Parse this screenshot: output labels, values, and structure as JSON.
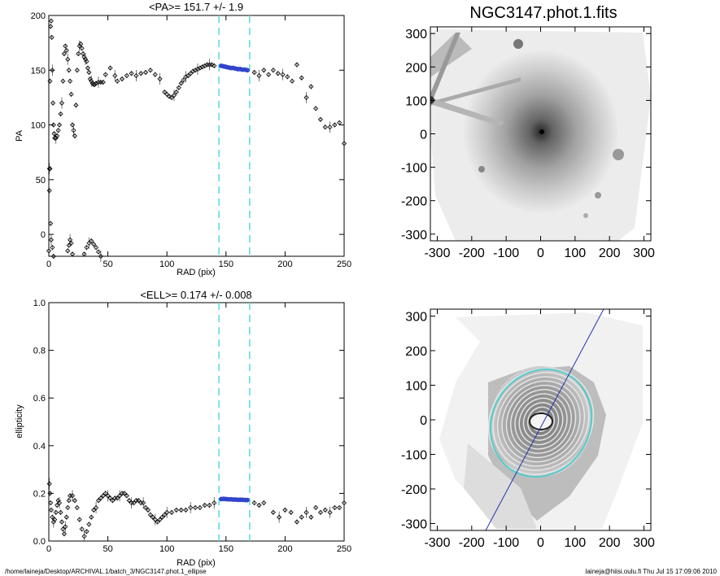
{
  "footer": {
    "path": "/home/laineja/Desktop/ARCHIVAL.1/batch_3/NGC3147.phot.1_ellipse",
    "user_stamp": "laineja@hiisi.oulu.fi  Thu Jul 15 17:09:06 2010"
  },
  "colors": {
    "axis": "#000000",
    "dashed_lines": "#55dddd",
    "fit_points": "#3344cc",
    "data_points": "#000000",
    "major_axis_line": "#2233aa",
    "ellipse_contours": "#e8e8e8",
    "outer_ellipse": "#55cccc"
  },
  "chart_data": [
    {
      "id": "pa-profile",
      "type": "scatter",
      "title": "<PA>= 151.7 +/-   1.9",
      "xlabel": "RAD (pix)",
      "ylabel": "PA",
      "xlim": [
        0,
        250
      ],
      "ylim": [
        -20,
        200
      ],
      "x_ticks": [
        "0",
        "50",
        "100",
        "150",
        "200",
        "250"
      ],
      "y_ticks": [
        "0",
        "50",
        "100",
        "150",
        "200"
      ],
      "vlines": [
        144,
        170
      ],
      "fit_range": [
        144,
        170
      ],
      "series": [
        {
          "x": [
            0.5,
            1,
            1.5,
            2,
            2.5,
            3,
            3.5,
            4,
            4.5,
            5,
            6,
            7,
            8,
            9,
            10,
            11,
            12,
            13,
            14,
            15,
            16,
            17,
            18,
            19,
            20,
            21,
            22,
            23,
            24,
            25,
            26,
            27,
            28,
            29,
            30,
            31,
            32,
            33,
            34,
            35,
            36,
            37,
            38,
            39,
            40,
            42,
            44,
            46,
            48,
            52,
            56,
            58,
            62,
            66,
            70,
            74,
            78,
            82,
            86,
            90,
            94,
            98,
            100,
            102,
            104,
            106,
            108,
            110,
            112,
            114,
            116,
            118,
            120,
            122,
            124,
            126,
            128,
            130,
            132,
            134,
            136,
            138,
            140,
            150,
            174,
            178,
            182,
            186,
            190,
            194,
            198,
            202,
            206,
            210,
            214,
            218,
            222,
            226,
            230,
            234,
            238,
            242,
            246,
            250
          ],
          "y": [
            60,
            140,
            190,
            195,
            180,
            150,
            120,
            100,
            92,
            88,
            88,
            90,
            95,
            100,
            110,
            120,
            140,
            165,
            172,
            168,
            160,
            150,
            140,
            128,
            100,
            95,
            90,
            118,
            150,
            165,
            172,
            174,
            170,
            165,
            162,
            160,
            158,
            152,
            148,
            142,
            140,
            138,
            137,
            137,
            138,
            139,
            139,
            139,
            146,
            152,
            145,
            140,
            142,
            145,
            147,
            145,
            147,
            148,
            150,
            146,
            142,
            130,
            128,
            126,
            125,
            127,
            130,
            134,
            138,
            141,
            144,
            145,
            147,
            149,
            150,
            151,
            152,
            153,
            154,
            155,
            155,
            155,
            154,
            153,
            148,
            145,
            150,
            146,
            150,
            147,
            146,
            144,
            140,
            155,
            143,
            125,
            135,
            115,
            105,
            98,
            98,
            100,
            102,
            83
          ]
        },
        {
          "x": [
            -1,
            0,
            0.5,
            1,
            1.5,
            2,
            3,
            4,
            16,
            17,
            18,
            19,
            20,
            30,
            32,
            34,
            36,
            38,
            40,
            42,
            44
          ],
          "y": [
            -20,
            -15,
            40,
            60,
            10,
            -5,
            -12,
            -20,
            -15,
            -10,
            -5,
            -8,
            -18,
            -18,
            -12,
            -8,
            -6,
            -9,
            -12,
            -16,
            -20
          ]
        },
        {
          "x": [
            146,
            148,
            150,
            152,
            154,
            156,
            158,
            160,
            162,
            164,
            166,
            168
          ],
          "y": [
            154,
            153.5,
            153,
            152.5,
            152,
            152,
            151.5,
            151,
            151,
            150.5,
            150.5,
            150
          ]
        }
      ]
    },
    {
      "id": "ellipticity-profile",
      "type": "scatter",
      "title": "<ELL>= 0.174 +/-  0.008",
      "xlabel": "RAD (pix)",
      "ylabel": "ellipticity",
      "xlim": [
        0,
        250
      ],
      "ylim": [
        0.0,
        1.0
      ],
      "x_ticks": [
        "0",
        "50",
        "100",
        "150",
        "200",
        "250"
      ],
      "y_ticks": [
        "0.0",
        "0.2",
        "0.4",
        "0.6",
        "0.8",
        "1.0"
      ],
      "vlines": [
        144,
        170
      ],
      "fit_range": [
        144,
        170
      ],
      "series": [
        {
          "x": [
            0.5,
            1,
            1.5,
            2,
            3,
            4,
            5,
            6,
            7,
            8,
            9,
            10,
            11,
            12,
            13,
            14,
            15,
            16,
            17,
            18,
            20,
            22,
            24,
            26,
            28,
            30,
            32,
            34,
            36,
            38,
            40,
            42,
            44,
            46,
            48,
            50,
            52,
            54,
            56,
            58,
            60,
            62,
            64,
            66,
            68,
            70,
            72,
            74,
            76,
            78,
            80,
            82,
            84,
            86,
            88,
            90,
            92,
            94,
            96,
            98,
            100,
            104,
            108,
            112,
            116,
            120,
            124,
            128,
            132,
            136,
            140,
            174,
            178,
            182,
            190,
            195,
            200,
            205,
            210,
            214,
            218,
            222,
            226,
            230,
            234,
            238,
            242,
            246,
            250
          ],
          "y": [
            0.24,
            0.2,
            0.16,
            0.13,
            0.1,
            0.08,
            0.09,
            0.12,
            0.15,
            0.17,
            0.16,
            0.12,
            0.08,
            0.05,
            0.03,
            0.06,
            0.1,
            0.14,
            0.17,
            0.19,
            0.19,
            0.17,
            0.14,
            0.09,
            0.05,
            0.02,
            0.04,
            0.07,
            0.1,
            0.13,
            0.14,
            0.17,
            0.18,
            0.19,
            0.2,
            0.19,
            0.18,
            0.17,
            0.18,
            0.18,
            0.19,
            0.2,
            0.2,
            0.19,
            0.17,
            0.16,
            0.16,
            0.17,
            0.17,
            0.16,
            0.16,
            0.14,
            0.13,
            0.11,
            0.1,
            0.09,
            0.08,
            0.09,
            0.1,
            0.11,
            0.12,
            0.12,
            0.13,
            0.13,
            0.13,
            0.14,
            0.14,
            0.14,
            0.15,
            0.15,
            0.16,
            0.16,
            0.15,
            0.16,
            0.12,
            0.1,
            0.13,
            0.12,
            0.08,
            0.1,
            0.12,
            0.1,
            0.14,
            0.12,
            0.13,
            0.12,
            0.14,
            0.14,
            0.16
          ]
        },
        {
          "x": [
            146,
            148,
            150,
            152,
            154,
            156,
            158,
            160,
            162,
            164,
            166,
            168
          ],
          "y": [
            0.176,
            0.177,
            0.176,
            0.175,
            0.175,
            0.174,
            0.174,
            0.173,
            0.173,
            0.173,
            0.172,
            0.172
          ]
        }
      ]
    },
    {
      "id": "galaxy-image",
      "type": "heatmap",
      "title": "NGC3147.phot.1.fits",
      "xlim": [
        -320,
        320
      ],
      "ylim": [
        -320,
        320
      ],
      "x_ticks": [
        "-300",
        "-200",
        "-100",
        "0",
        "100",
        "200",
        "300"
      ],
      "y_ticks": [
        "-300",
        "-200",
        "-100",
        "0",
        "100",
        "200",
        "300"
      ]
    },
    {
      "id": "ellipse-fit-image",
      "type": "heatmap",
      "title": "",
      "xlim": [
        -320,
        320
      ],
      "ylim": [
        -320,
        320
      ],
      "x_ticks": [
        "-300",
        "-200",
        "-100",
        "0",
        "100",
        "200",
        "300"
      ],
      "y_ticks": [
        "-300",
        "-200",
        "-100",
        "0",
        "100",
        "200",
        "300"
      ]
    }
  ]
}
